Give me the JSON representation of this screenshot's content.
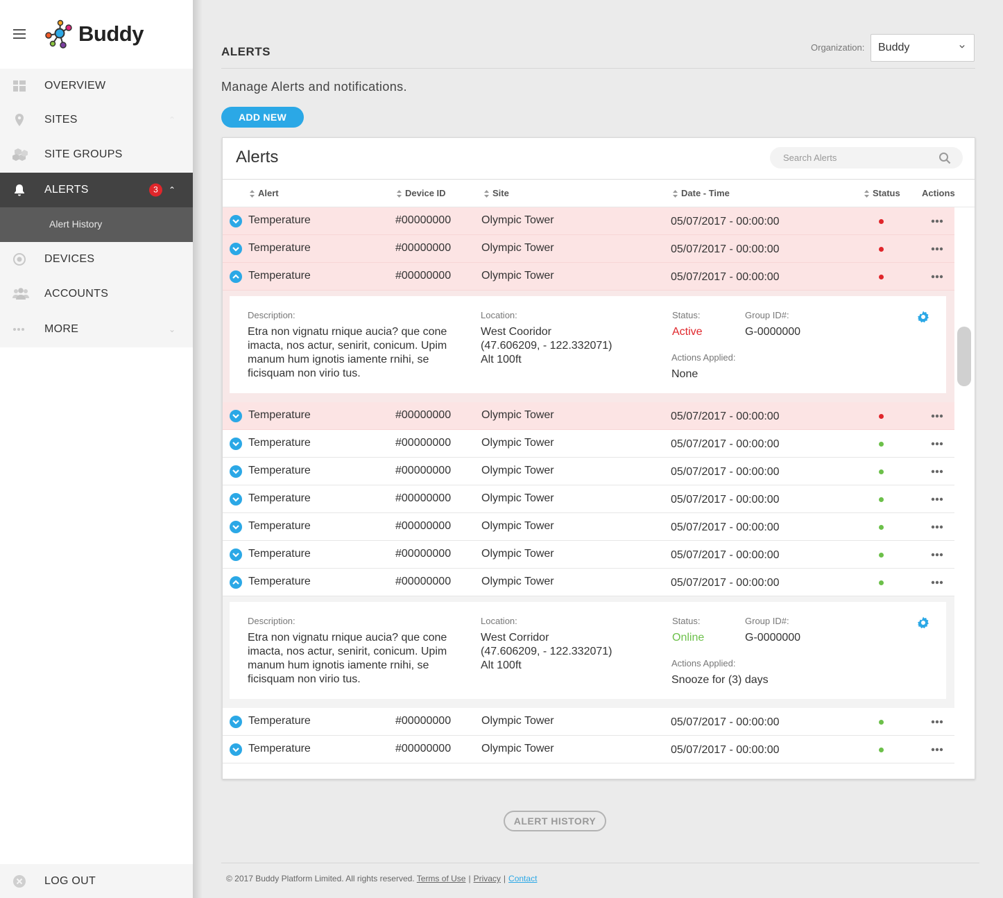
{
  "app": {
    "logo_text": "Buddy"
  },
  "sidebar": {
    "items": [
      {
        "key": "overview",
        "label": "OVERVIEW",
        "icon": "grid-icon"
      },
      {
        "key": "sites",
        "label": "SITES",
        "icon": "map-pin-icon"
      },
      {
        "key": "site-groups",
        "label": "SITE GROUPS",
        "icon": "cubes-icon"
      },
      {
        "key": "alerts",
        "label": "ALERTS",
        "icon": "bell-icon",
        "badge": "3",
        "active": true
      },
      {
        "key": "devices",
        "label": "DEVICES",
        "icon": "target-icon"
      },
      {
        "key": "accounts",
        "label": "ACCOUNTS",
        "icon": "users-icon"
      },
      {
        "key": "more",
        "label": "MORE",
        "icon": "ellipsis-icon"
      }
    ],
    "sub_item": "Alert History",
    "logout": "LOG OUT"
  },
  "header": {
    "title": "ALERTS",
    "org_label": "Organization:",
    "org_value": "Buddy",
    "subtitle": "Manage Alerts and notifications.",
    "add_button": "ADD NEW"
  },
  "panel": {
    "title": "Alerts",
    "search_placeholder": "Search Alerts",
    "columns": [
      "Alert",
      "Device ID",
      "Site",
      "Date - Time",
      "Status",
      "Actions"
    ]
  },
  "rows": [
    {
      "alert": "Temperature",
      "device": "#00000000",
      "site": "Olympic Tower",
      "datetime": "05/07/2017 - 00:00:00",
      "status": "red",
      "expanded": false
    },
    {
      "alert": "Temperature",
      "device": "#00000000",
      "site": "Olympic Tower",
      "datetime": "05/07/2017 - 00:00:00",
      "status": "red",
      "expanded": false
    },
    {
      "alert": "Temperature",
      "device": "#00000000",
      "site": "Olympic Tower",
      "datetime": "05/07/2017 - 00:00:00",
      "status": "red",
      "expanded": true
    },
    {
      "alert": "Temperature",
      "device": "#00000000",
      "site": "Olympic Tower",
      "datetime": "05/07/2017 - 00:00:00",
      "status": "red",
      "expanded": false
    },
    {
      "alert": "Temperature",
      "device": "#00000000",
      "site": "Olympic Tower",
      "datetime": "05/07/2017 - 00:00:00",
      "status": "green",
      "expanded": false
    },
    {
      "alert": "Temperature",
      "device": "#00000000",
      "site": "Olympic Tower",
      "datetime": "05/07/2017 - 00:00:00",
      "status": "green",
      "expanded": false
    },
    {
      "alert": "Temperature",
      "device": "#00000000",
      "site": "Olympic Tower",
      "datetime": "05/07/2017 - 00:00:00",
      "status": "green",
      "expanded": false
    },
    {
      "alert": "Temperature",
      "device": "#00000000",
      "site": "Olympic Tower",
      "datetime": "05/07/2017 - 00:00:00",
      "status": "green",
      "expanded": false
    },
    {
      "alert": "Temperature",
      "device": "#00000000",
      "site": "Olympic Tower",
      "datetime": "05/07/2017 - 00:00:00",
      "status": "green",
      "expanded": false
    },
    {
      "alert": "Temperature",
      "device": "#00000000",
      "site": "Olympic Tower",
      "datetime": "05/07/2017 - 00:00:00",
      "status": "green",
      "expanded": true
    },
    {
      "alert": "Temperature",
      "device": "#00000000",
      "site": "Olympic Tower",
      "datetime": "05/07/2017 - 00:00:00",
      "status": "green",
      "expanded": false
    },
    {
      "alert": "Temperature",
      "device": "#00000000",
      "site": "Olympic Tower",
      "datetime": "05/07/2017 - 00:00:00",
      "status": "green",
      "expanded": false
    }
  ],
  "details": [
    {
      "description_label": "Description:",
      "description": [
        "Etra non vignatu rnique aucia? que cone",
        "imacta, nos actur, senirit, conicum. Upim",
        "manum hum ignotis iamente rnihi, se",
        "ficisquam non virio tus."
      ],
      "location_label": "Location:",
      "location": [
        "West Cooridor",
        "(47.606209, - 122.332071)",
        "Alt 100ft"
      ],
      "status_label": "Status:",
      "status": "Active",
      "group_label": "Group ID#:",
      "group": "G-0000000",
      "actions_label": "Actions Applied:",
      "actions": "None"
    },
    {
      "description_label": "Description:",
      "description": [
        "Etra non vignatu rnique aucia? que cone",
        "imacta, nos actur, senirit, conicum. Upim",
        "manum hum ignotis iamente rnihi, se",
        "ficisquam non virio tus."
      ],
      "location_label": "Location:",
      "location": [
        "West Corridor",
        "(47.606209, - 122.332071)",
        "Alt 100ft"
      ],
      "status_label": "Status:",
      "status": "Online",
      "group_label": "Group ID#:",
      "group": "G-0000000",
      "actions_label": "Actions Applied:",
      "actions": "Snooze for (3) days"
    }
  ],
  "footer": {
    "alert_history_button": "ALERT HISTORY",
    "copyright": "© 2017 Buddy Platform Limited. All rights reserved.",
    "links": [
      "Terms of Use",
      "Privacy",
      "Contact"
    ],
    "separator": "|"
  },
  "colors": {
    "accent": "#2ba8e6",
    "alarm_row": "#fce4e4",
    "status_red": "#e0262b",
    "status_green": "#6cc04a",
    "badge": "#e0262b"
  }
}
